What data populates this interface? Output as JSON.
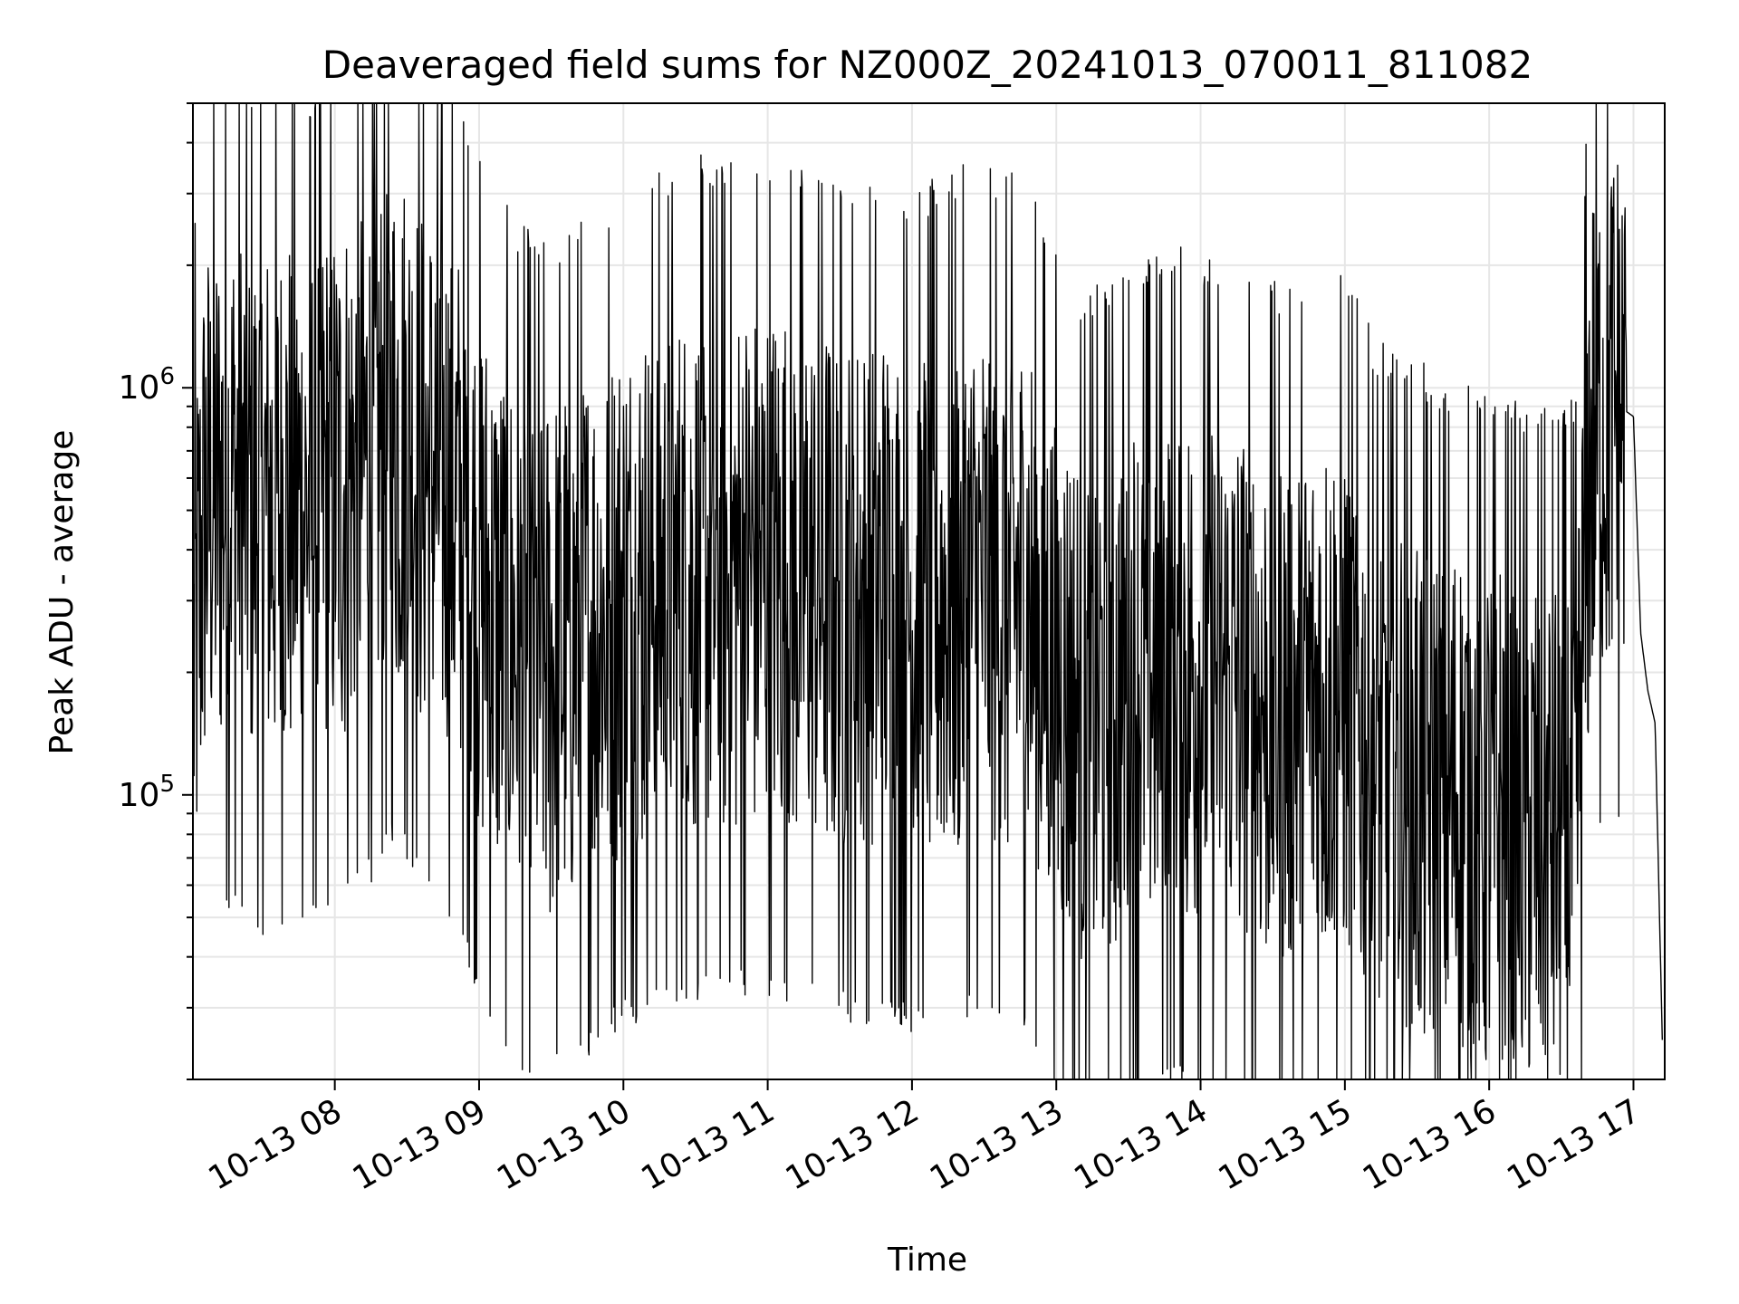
{
  "chart_data": {
    "type": "line",
    "title": "Deaveraged field sums for NZ000Z_20241013_070011_811082",
    "xlabel": "Time",
    "ylabel": "Peak ADU - average",
    "yscale": "log",
    "ylim": [
      20000,
      5000000
    ],
    "xlim": [
      "2024-10-13 07:01",
      "2024-10-13 17:13"
    ],
    "x_ticks": [
      "10-13 08",
      "10-13 09",
      "10-13 10",
      "10-13 11",
      "10-13 12",
      "10-13 13",
      "10-13 14",
      "10-13 15",
      "10-13 16",
      "10-13 17"
    ],
    "y_ticks": [
      {
        "base": "10",
        "exp": "5",
        "value": 100000
      },
      {
        "base": "10",
        "exp": "6",
        "value": 1000000
      }
    ],
    "grid": true,
    "line_color": "#000000",
    "series": [
      {
        "description_free": true,
        "x_hours": [
          7.02,
          7.1,
          7.2,
          7.3,
          7.4,
          7.5,
          7.6,
          7.7,
          7.8,
          7.9,
          8.0,
          8.1,
          8.2,
          8.3,
          8.4,
          8.5,
          8.6,
          8.7,
          8.8,
          8.9,
          9.0,
          9.1,
          9.2,
          9.3,
          9.4,
          9.5,
          9.6,
          9.7,
          9.8,
          9.9,
          10.0,
          10.2,
          10.4,
          10.6,
          10.8,
          11.0,
          11.2,
          11.4,
          11.6,
          11.8,
          12.0,
          12.2,
          12.4,
          12.6,
          12.8,
          13.0,
          13.2,
          13.4,
          13.6,
          13.8,
          14.0,
          14.2,
          14.4,
          14.6,
          14.8,
          15.0,
          15.2,
          15.4,
          15.6,
          15.8,
          16.0,
          16.2,
          16.4,
          16.6,
          16.7,
          16.8,
          16.9,
          17.0,
          17.05,
          17.1,
          17.15,
          17.2
        ],
        "values": [
          200000,
          500000,
          550000,
          600000,
          550000,
          500000,
          520000,
          540000,
          500000,
          550000,
          560000,
          600000,
          650000,
          700000,
          800000,
          750000,
          650000,
          600000,
          550000,
          450000,
          350000,
          280000,
          250000,
          230000,
          220000,
          210000,
          230000,
          250000,
          260000,
          270000,
          300000,
          320000,
          330000,
          340000,
          350000,
          360000,
          340000,
          320000,
          300000,
          310000,
          280000,
          300000,
          320000,
          310000,
          300000,
          200000,
          150000,
          180000,
          200000,
          210000,
          200000,
          190000,
          170000,
          160000,
          170000,
          180000,
          120000,
          110000,
          100000,
          95000,
          90000,
          85000,
          80000,
          85000,
          700000,
          850000,
          900000,
          850000,
          250000,
          180000,
          150000,
          25000
        ]
      }
    ]
  }
}
